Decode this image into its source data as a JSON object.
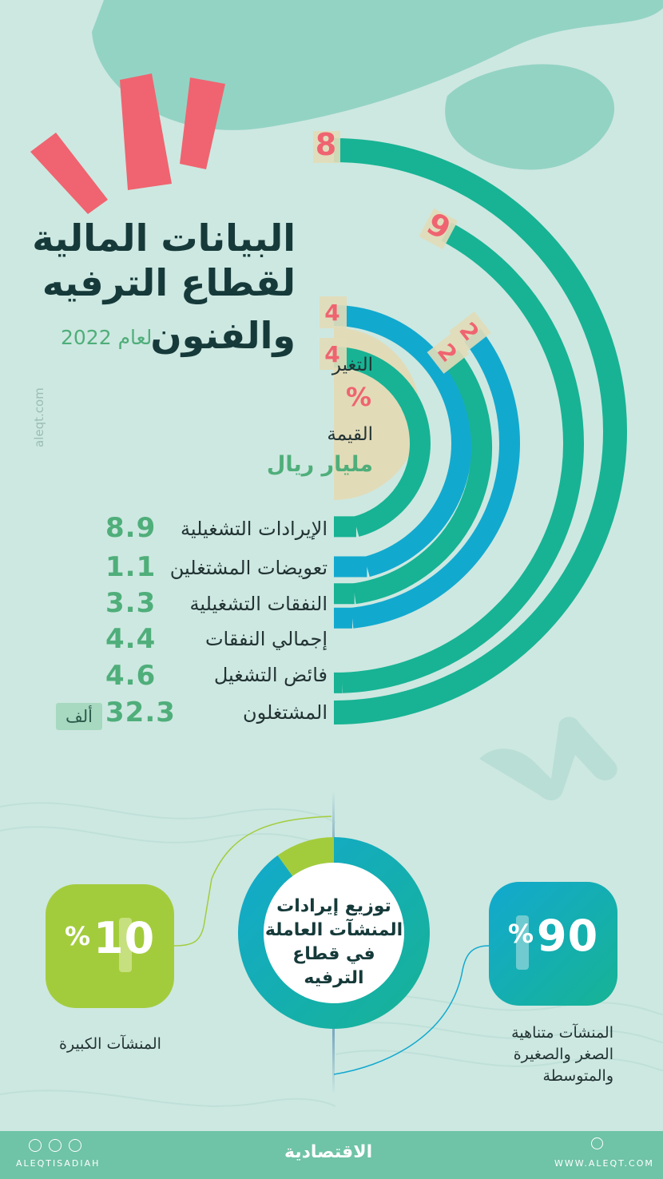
{
  "title": {
    "line1": "البيانات المالية",
    "line2": "لقطاع الترفيه",
    "line3": "والفنون",
    "year_note": "لعام 2022"
  },
  "watermark_side": "aleqt.com",
  "legend": {
    "change_label": "التغير",
    "change_unit": "%",
    "value_label": "القيمة",
    "value_unit": "مليار ريال"
  },
  "rows": [
    {
      "label": "الإيرادات التشغيلية",
      "value": "8.9"
    },
    {
      "label": "تعويضات المشتغلين",
      "value": "1.1"
    },
    {
      "label": "النفقات التشغيلية",
      "value": "3.3"
    },
    {
      "label": "إجمالي النفقات",
      "value": "4.4"
    },
    {
      "label": "فائض التشغيل",
      "value": "4.6"
    },
    {
      "label": "المشتغلون",
      "value": "32.3",
      "unit": "ألف"
    }
  ],
  "arc_change_labels": [
    "4",
    "4",
    "2",
    "2",
    "9",
    "8"
  ],
  "donut": {
    "center_line1": "توزيع إيرادات",
    "center_line2": "المنشآت العاملة",
    "center_line3": "في قطاع الترفيه",
    "small": {
      "value": "10",
      "unit": "%",
      "label": "المنشآت الكبيرة"
    },
    "large": {
      "value": "90",
      "unit": "%",
      "label_line1": "المنشآت متناهية",
      "label_line2": "الصغر والصغيرة",
      "label_line3": "والمتوسطة"
    }
  },
  "footer": {
    "handle": "ALEQTISADIAH",
    "logo": "الاقتصادية",
    "site": "WWW.ALEQT.COM"
  },
  "chart_data": [
    {
      "type": "bar",
      "categories": [
        "الإيرادات التشغيلية",
        "تعويضات المشتغلين",
        "النفقات التشغيلية",
        "إجمالي النفقات",
        "فائض التشغيل",
        "المشتغلون"
      ],
      "values": [
        8.9,
        1.1,
        3.3,
        4.4,
        4.6,
        32.3
      ],
      "change_percent": [
        4,
        4,
        2,
        2,
        9,
        8
      ],
      "value_unit": "مليار ريال",
      "change_unit": "%"
    },
    {
      "type": "pie",
      "categories": [
        "المنشآت الكبيرة",
        "المنشآت متناهية الصغر والصغيرة والمتوسطة"
      ],
      "values": [
        10,
        90
      ],
      "unit": "%"
    }
  ],
  "colors": {
    "bg": "#cde8e1",
    "teal": "#17b394",
    "blue": "#12a9cf",
    "green": "#a3cc3d",
    "coral": "#ef6470",
    "sand": "#e2dbb8",
    "title": "#163a3a"
  }
}
